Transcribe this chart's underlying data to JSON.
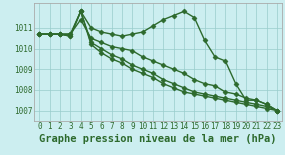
{
  "xlabel": "Graphe pression niveau de la mer (hPa)",
  "x": [
    0,
    1,
    2,
    3,
    4,
    5,
    6,
    7,
    8,
    9,
    10,
    11,
    12,
    13,
    14,
    15,
    16,
    17,
    18,
    19,
    20,
    21,
    22,
    23
  ],
  "series": [
    [
      1010.7,
      1010.7,
      1010.7,
      1010.7,
      1011.8,
      1011.0,
      1010.8,
      1010.7,
      1010.6,
      1010.7,
      1010.8,
      1011.1,
      1011.4,
      1011.6,
      1011.8,
      1011.5,
      1010.4,
      1009.6,
      1009.4,
      1008.3,
      1007.5,
      1007.5,
      1007.3,
      1007.0
    ],
    [
      1010.7,
      1010.7,
      1010.7,
      1010.6,
      1011.8,
      1010.2,
      1009.8,
      1009.5,
      1009.3,
      1009.0,
      1008.8,
      1008.6,
      1008.3,
      1008.1,
      1007.9,
      1007.8,
      1007.7,
      1007.6,
      1007.5,
      1007.4,
      1007.3,
      1007.2,
      1007.1,
      1007.0
    ],
    [
      1010.7,
      1010.7,
      1010.7,
      1010.6,
      1011.8,
      1010.3,
      1010.0,
      1009.7,
      1009.5,
      1009.2,
      1009.0,
      1008.8,
      1008.5,
      1008.3,
      1008.1,
      1007.9,
      1007.8,
      1007.7,
      1007.6,
      1007.5,
      1007.4,
      1007.3,
      1007.2,
      1007.0
    ],
    [
      1010.7,
      1010.7,
      1010.7,
      1010.7,
      1011.4,
      1010.5,
      1010.3,
      1010.1,
      1010.0,
      1009.9,
      1009.6,
      1009.4,
      1009.2,
      1009.0,
      1008.8,
      1008.5,
      1008.3,
      1008.2,
      1007.9,
      1007.8,
      1007.6,
      1007.5,
      1007.3,
      1007.0
    ]
  ],
  "line_color": "#2d6a2d",
  "marker": "D",
  "markersize": 2.5,
  "linewidth": 1.0,
  "ylim": [
    1006.5,
    1012.2
  ],
  "yticks": [
    1007,
    1008,
    1009,
    1010,
    1011
  ],
  "xticks": [
    0,
    1,
    2,
    3,
    4,
    5,
    6,
    7,
    8,
    9,
    10,
    11,
    12,
    13,
    14,
    15,
    16,
    17,
    18,
    19,
    20,
    21,
    22,
    23
  ],
  "bg_color": "#cceef0",
  "grid_color": "#99cccc",
  "tick_fontsize": 5.5,
  "xlabel_fontsize": 7.5
}
